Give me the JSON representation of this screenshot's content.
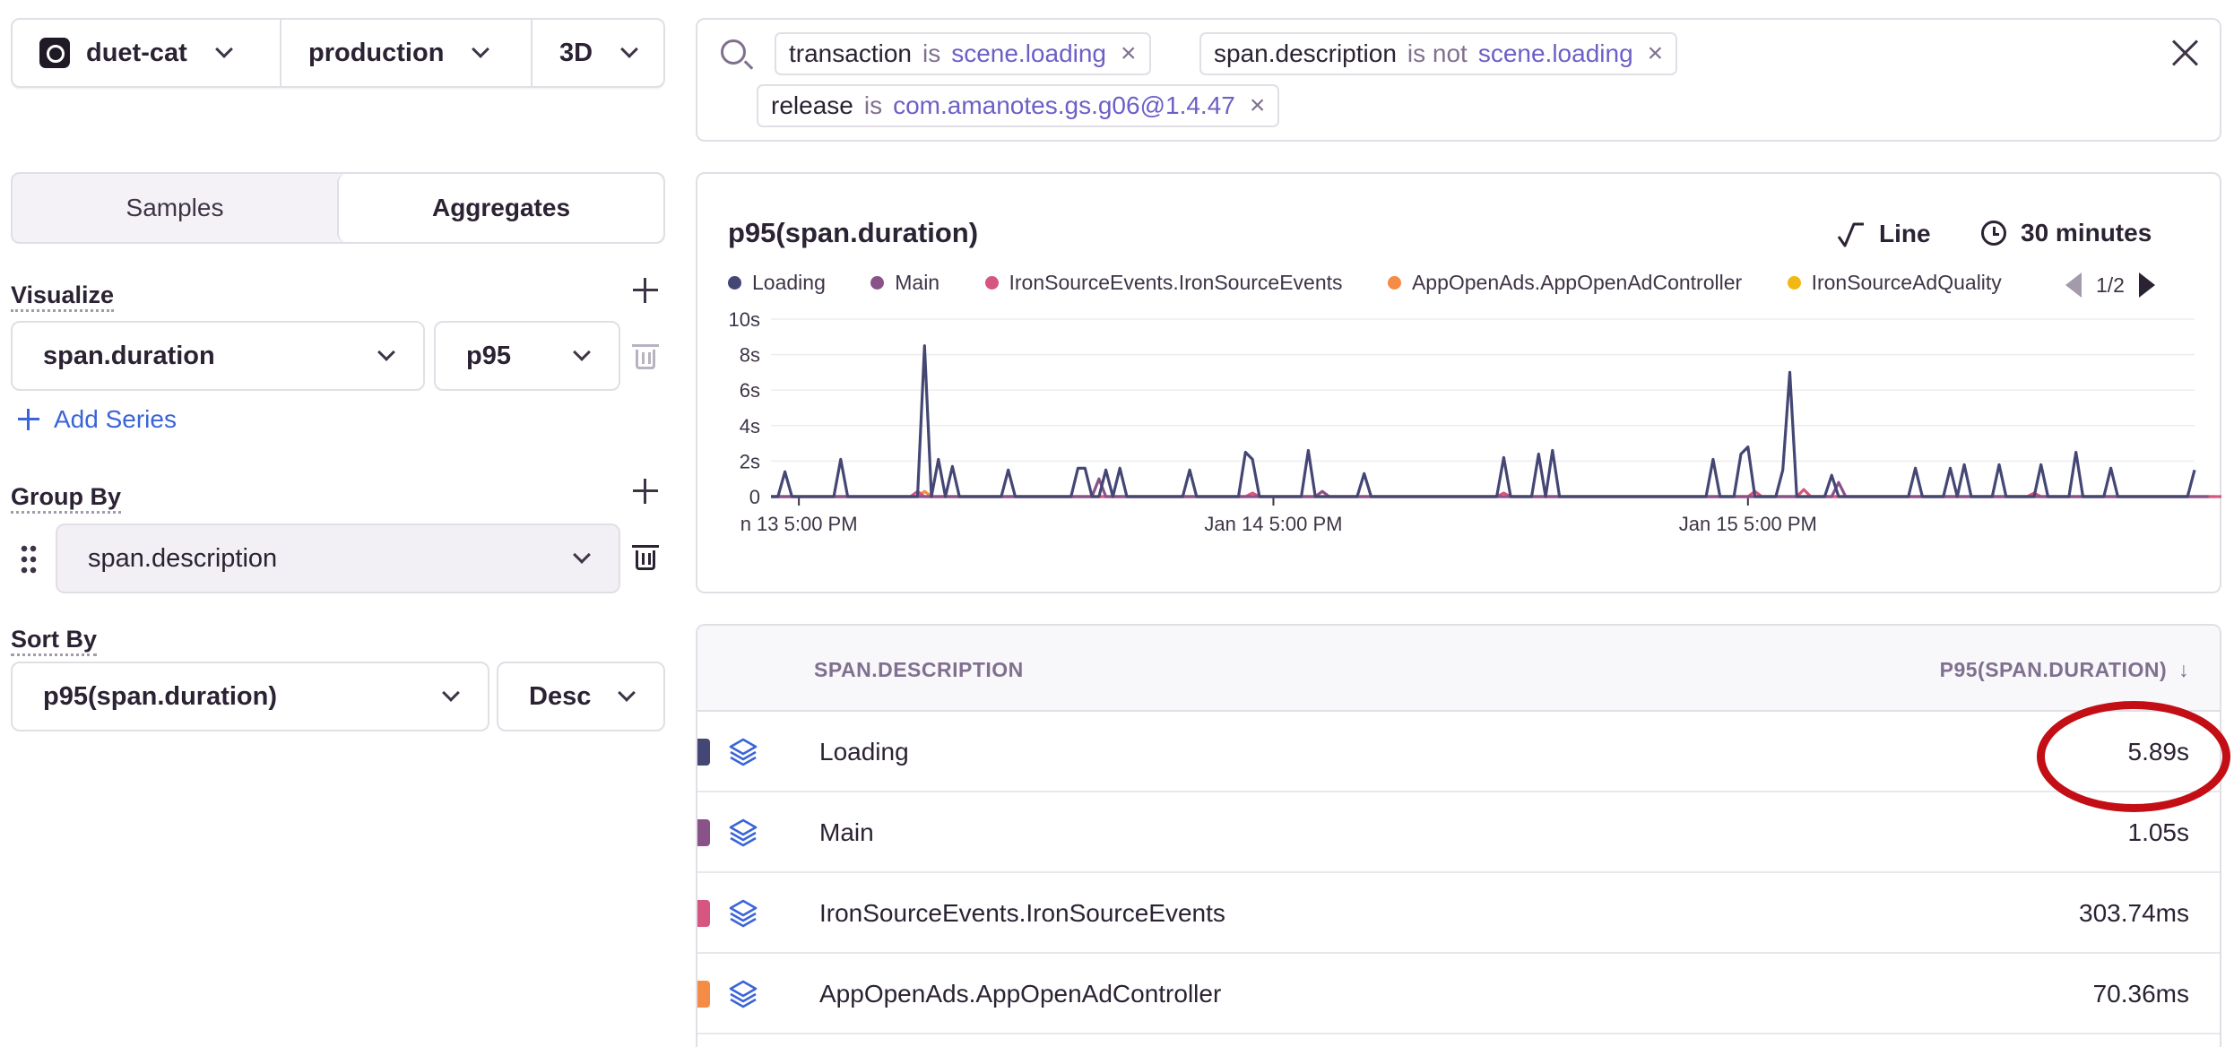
{
  "project_bar": {
    "project": "duet-cat",
    "environment": "production",
    "period": "3D"
  },
  "mode_tabs": [
    {
      "label": "Samples",
      "active": false
    },
    {
      "label": "Aggregates",
      "active": true
    }
  ],
  "visualize": {
    "label": "Visualize",
    "field": "span.duration",
    "function": "p95",
    "add_series_label": "Add Series"
  },
  "group_by": {
    "label": "Group By",
    "field": "span.description"
  },
  "sort_by": {
    "label": "Sort By",
    "field": "p95(span.duration)",
    "order": "Desc"
  },
  "search": {
    "tokens": [
      {
        "key": "transaction",
        "op": "is",
        "value": "scene.loading"
      },
      {
        "key": "span.description",
        "op": "is not",
        "value": "scene.loading"
      },
      {
        "key": "release",
        "op": "is",
        "value": "com.amanotes.gs.g06@1.4.47"
      }
    ],
    "remove_glyph": "×"
  },
  "chart": {
    "title": "p95(span.duration)",
    "type_label": "Line",
    "interval_label": "30 minutes",
    "legend_page": "1/2",
    "legend": [
      {
        "name": "Loading",
        "color": "#444674"
      },
      {
        "name": "Main",
        "color": "#895289"
      },
      {
        "name": "IronSourceEvents.IronSourceEvents",
        "color": "#d6567f"
      },
      {
        "name": "AppOpenAds.AppOpenAdController",
        "color": "#f58c46"
      },
      {
        "name": "IronSourceAdQuality",
        "color": "#f2b712"
      }
    ]
  },
  "chart_data": {
    "type": "line",
    "title": "p95(span.duration)",
    "y_unit": "s",
    "ylim": [
      0,
      10
    ],
    "y_ticks": [
      "0",
      "2s",
      "4s",
      "6s",
      "8s",
      "10s"
    ],
    "x_tick_labels": [
      "n 13 5:00 PM",
      "Jan 14 5:00 PM",
      "Jan 15 5:00 PM"
    ],
    "x_ticks_index": [
      4,
      72,
      140
    ],
    "grid": true,
    "series": [
      {
        "name": "Loading",
        "color": "#444674",
        "values": [
          0,
          0,
          1.4,
          0,
          0,
          0,
          0,
          0,
          0,
          0,
          2.1,
          0,
          0,
          0,
          0,
          0,
          0,
          0,
          0,
          0,
          0,
          0,
          8.5,
          0,
          2.1,
          0,
          1.7,
          0,
          0,
          0,
          0,
          0,
          0,
          0,
          1.5,
          0,
          0,
          0,
          0,
          0,
          0,
          0,
          0,
          0,
          1.6,
          1.6,
          0,
          0,
          1.5,
          0,
          1.6,
          0,
          0,
          0,
          0,
          0,
          0,
          0,
          0,
          0,
          1.5,
          0,
          0,
          0,
          0,
          0,
          0,
          0,
          2.5,
          2.1,
          0,
          0,
          0,
          0,
          0,
          0,
          0,
          2.6,
          0,
          0,
          0,
          0,
          0,
          0,
          0,
          1.3,
          0,
          0,
          0,
          0,
          0,
          0,
          0,
          0,
          0,
          0,
          0,
          0,
          0,
          0,
          0,
          0,
          0,
          0,
          0,
          2.2,
          0,
          0,
          0,
          0,
          2.4,
          0,
          2.6,
          0,
          0,
          0,
          0,
          0,
          0,
          0,
          0,
          0,
          0,
          0,
          0,
          0,
          0,
          0,
          0,
          0,
          0,
          0,
          0,
          0,
          0,
          2.1,
          0,
          0,
          0,
          2.4,
          2.8,
          0,
          0,
          0,
          0,
          1.5,
          7,
          0,
          0,
          0,
          0,
          0,
          1.2,
          0,
          0,
          0,
          0,
          0,
          0,
          0,
          0,
          0,
          0,
          0,
          1.6,
          0,
          0,
          0,
          0,
          1.6,
          0,
          1.8,
          0,
          0,
          0,
          0,
          1.8,
          0,
          0,
          0,
          0,
          0,
          1.8,
          0,
          0,
          0,
          0,
          2.5,
          0,
          0,
          0,
          0,
          1.6,
          0,
          0,
          0,
          0,
          0,
          0,
          0,
          0,
          0,
          0,
          0,
          1.5
        ]
      },
      {
        "name": "Main",
        "color": "#895289",
        "values": [
          0,
          0,
          0,
          0,
          0,
          0,
          0,
          0,
          0,
          0,
          0,
          0,
          0,
          0,
          0,
          0,
          0,
          0,
          0,
          0,
          0,
          0,
          0,
          0,
          0,
          0,
          0,
          0,
          0,
          0,
          0,
          0,
          0,
          0,
          0,
          0,
          0,
          0,
          0,
          0,
          0,
          0,
          0,
          0,
          0,
          0,
          0,
          1,
          0,
          0,
          0,
          0,
          0,
          0,
          0,
          0,
          0,
          0,
          0,
          0,
          0,
          0,
          0,
          0,
          0,
          0,
          0,
          0,
          0,
          0,
          0,
          0,
          0,
          0,
          0,
          0,
          0,
          0,
          0,
          0.3,
          0,
          0,
          0,
          0,
          0,
          0,
          0,
          0,
          0,
          0,
          0,
          0,
          0,
          0,
          0,
          0,
          0,
          0,
          0,
          0,
          0,
          0,
          0,
          0,
          0,
          0,
          0,
          0,
          0,
          0,
          0,
          0,
          0,
          0,
          0,
          0,
          0,
          0,
          0,
          0,
          0,
          0,
          0,
          0,
          0,
          0,
          0,
          0,
          0,
          0,
          0,
          0,
          0,
          0,
          0,
          0,
          0,
          0,
          0,
          0,
          0,
          0,
          0,
          0,
          0,
          0,
          0,
          0,
          0,
          0,
          0,
          0,
          0,
          0.8,
          0,
          0,
          0,
          0,
          0,
          0,
          0,
          0,
          0,
          0,
          0,
          0,
          0,
          0,
          0,
          0,
          0,
          0,
          0,
          0,
          0,
          0,
          0,
          0,
          0,
          0,
          0,
          0,
          0,
          0,
          0,
          0,
          0,
          0,
          0,
          0,
          0,
          0,
          0,
          0,
          0,
          0,
          0,
          0,
          0,
          0,
          0,
          0,
          0,
          0,
          0,
          0,
          0
        ]
      },
      {
        "name": "IronSourceEvents.IronSourceEvents",
        "color": "#d6567f",
        "values": [
          0,
          0,
          0,
          0,
          0,
          0,
          0,
          0,
          0,
          0,
          0,
          0,
          0,
          0,
          0,
          0,
          0,
          0,
          0,
          0,
          0,
          0.3,
          0,
          0,
          0,
          0,
          0,
          0,
          0,
          0,
          0,
          0,
          0,
          0,
          0,
          0,
          0,
          0,
          0,
          0,
          0,
          0,
          0,
          0,
          0,
          0,
          0,
          0,
          0,
          0,
          0,
          0,
          0,
          0,
          0,
          0,
          0,
          0,
          0,
          0,
          0,
          0,
          0,
          0,
          0,
          0,
          0,
          0,
          0,
          0.2,
          0,
          0,
          0,
          0,
          0,
          0,
          0,
          0,
          0,
          0,
          0,
          0,
          0,
          0,
          0,
          0,
          0,
          0,
          0,
          0,
          0,
          0,
          0,
          0,
          0,
          0,
          0,
          0,
          0,
          0,
          0,
          0,
          0,
          0,
          0,
          0.2,
          0,
          0,
          0,
          0,
          0,
          0,
          0,
          0,
          0,
          0,
          0,
          0,
          0,
          0,
          0,
          0,
          0,
          0,
          0,
          0,
          0,
          0,
          0,
          0,
          0,
          0,
          0,
          0,
          0,
          0,
          0,
          0,
          0,
          0,
          0,
          0.3,
          0,
          0,
          0,
          0,
          0,
          0,
          0.4,
          0,
          0,
          0,
          0,
          0,
          0,
          0,
          0,
          0,
          0,
          0,
          0,
          0,
          0,
          0,
          0,
          0,
          0,
          0,
          0,
          0,
          0,
          0,
          0,
          0,
          0,
          0,
          0,
          0,
          0,
          0,
          0,
          0.2,
          0,
          0,
          0,
          0,
          0,
          0,
          0,
          0,
          0,
          0,
          0,
          0,
          0,
          0,
          0,
          0,
          0,
          0,
          0,
          0,
          0,
          0,
          0,
          0,
          0,
          0,
          0
        ]
      },
      {
        "name": "AppOpenAds.AppOpenAdController",
        "color": "#f58c46",
        "values": [
          0,
          0,
          0,
          0,
          0,
          0,
          0,
          0,
          0,
          0,
          0,
          0,
          0,
          0,
          0,
          0,
          0,
          0,
          0,
          0,
          0,
          0,
          0.3,
          0,
          0,
          0,
          0,
          0,
          0,
          0,
          0,
          0,
          0,
          0,
          0,
          0,
          0,
          0,
          0,
          0,
          0,
          0,
          0,
          0,
          0,
          0,
          0,
          0,
          0,
          0,
          0,
          0,
          0,
          0,
          0,
          0,
          0,
          0,
          0,
          0,
          0,
          0,
          0,
          0,
          0,
          0,
          0,
          0,
          0,
          0,
          0,
          0,
          0,
          0,
          0,
          0,
          0,
          0,
          0,
          0,
          0,
          0,
          0,
          0,
          0,
          0,
          0,
          0,
          0,
          0,
          0,
          0,
          0,
          0,
          0,
          0,
          0,
          0,
          0,
          0,
          0,
          0,
          0,
          0,
          0,
          0,
          0,
          0,
          0,
          0,
          0,
          0,
          0,
          0,
          0,
          0,
          0,
          0,
          0,
          0,
          0,
          0,
          0,
          0,
          0,
          0,
          0,
          0,
          0,
          0,
          0,
          0,
          0,
          0,
          0,
          0,
          0,
          0,
          0,
          0,
          0,
          0,
          0,
          0,
          0,
          0,
          0,
          0,
          0,
          0,
          0,
          0,
          0,
          0,
          0,
          0,
          0,
          0,
          0,
          0,
          0,
          0,
          0,
          0,
          0,
          0,
          0,
          0,
          0,
          0,
          0,
          0,
          0,
          0,
          0,
          0,
          0,
          0,
          0,
          0,
          0,
          0,
          0,
          0,
          0,
          0,
          0,
          0,
          0,
          0,
          0,
          0,
          0,
          0,
          0,
          0,
          0,
          0,
          0,
          0,
          0,
          0,
          0,
          0,
          0,
          0,
          0,
          0
        ]
      }
    ]
  },
  "table": {
    "headers": {
      "description": "SPAN.DESCRIPTION",
      "p95": "P95(SPAN.DURATION)"
    },
    "sort_arrow": "↓",
    "rows": [
      {
        "description": "Loading",
        "p95": "5.89s",
        "color": "#444674"
      },
      {
        "description": "Main",
        "p95": "1.05s",
        "color": "#895289"
      },
      {
        "description": "IronSourceEvents.IronSourceEvents",
        "p95": "303.74ms",
        "color": "#d6567f"
      },
      {
        "description": "AppOpenAds.AppOpenAdController",
        "p95": "70.36ms",
        "color": "#f58c46"
      }
    ]
  }
}
